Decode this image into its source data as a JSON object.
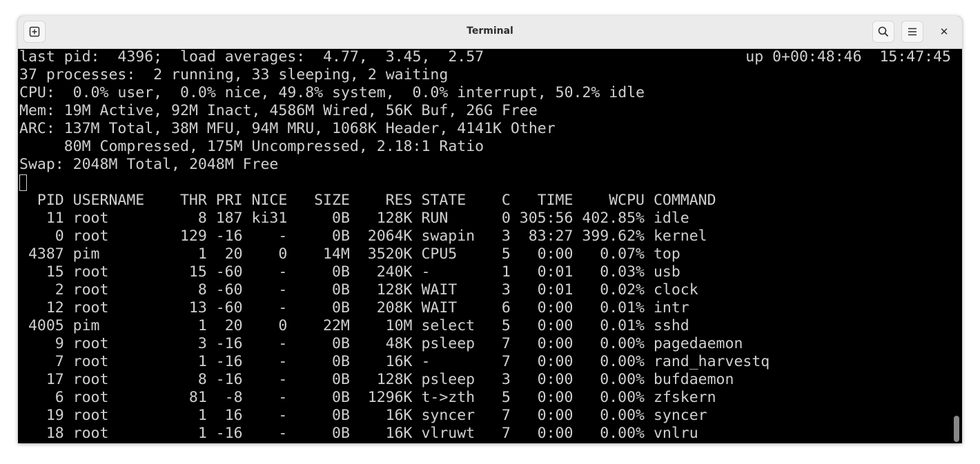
{
  "window": {
    "title": "Terminal",
    "buttons": {
      "new_tab": "new-tab-icon",
      "search": "search-icon",
      "menu": "hamburger-menu-icon",
      "close": "close-icon"
    }
  },
  "colors": {
    "background": "#000000",
    "foreground": "#d0d0d0",
    "header": "#ebebeb"
  },
  "summary": {
    "line1_left": "last pid:  4396;  load averages:  4.77,  3.45,  2.57",
    "line1_right": "up 0+00:48:46  15:47:45",
    "lines": [
      "37 processes:  2 running, 33 sleeping, 2 waiting",
      "CPU:  0.0% user,  0.0% nice, 49.8% system,  0.0% interrupt, 50.2% idle",
      "Mem: 19M Active, 92M Inact, 4586M Wired, 56K Buf, 26G Free",
      "ARC: 137M Total, 38M MFU, 94M MRU, 1068K Header, 4141K Other",
      "     80M Compressed, 175M Uncompressed, 2.18:1 Ratio",
      "Swap: 2048M Total, 2048M Free"
    ]
  },
  "table": {
    "columns": [
      "PID",
      "USERNAME",
      "THR",
      "PRI",
      "NICE",
      "SIZE",
      "RES",
      "STATE",
      "C",
      "TIME",
      "WCPU",
      "COMMAND"
    ],
    "rows": [
      [
        "11",
        "root",
        "8",
        "187",
        "ki31",
        "0B",
        "128K",
        "RUN",
        "0",
        "305:56",
        "402.85%",
        "idle"
      ],
      [
        "0",
        "root",
        "129",
        "-16",
        "-",
        "0B",
        "2064K",
        "swapin",
        "3",
        "83:27",
        "399.62%",
        "kernel"
      ],
      [
        "4387",
        "pim",
        "1",
        "20",
        "0",
        "14M",
        "3520K",
        "CPU5",
        "5",
        "0:00",
        "0.07%",
        "top"
      ],
      [
        "15",
        "root",
        "15",
        "-60",
        "-",
        "0B",
        "240K",
        "-",
        "1",
        "0:01",
        "0.03%",
        "usb"
      ],
      [
        "2",
        "root",
        "8",
        "-60",
        "-",
        "0B",
        "128K",
        "WAIT",
        "3",
        "0:01",
        "0.02%",
        "clock"
      ],
      [
        "12",
        "root",
        "13",
        "-60",
        "-",
        "0B",
        "208K",
        "WAIT",
        "6",
        "0:00",
        "0.01%",
        "intr"
      ],
      [
        "4005",
        "pim",
        "1",
        "20",
        "0",
        "22M",
        "10M",
        "select",
        "5",
        "0:00",
        "0.01%",
        "sshd"
      ],
      [
        "9",
        "root",
        "3",
        "-16",
        "-",
        "0B",
        "48K",
        "psleep",
        "7",
        "0:00",
        "0.00%",
        "pagedaemon"
      ],
      [
        "7",
        "root",
        "1",
        "-16",
        "-",
        "0B",
        "16K",
        "-",
        "7",
        "0:00",
        "0.00%",
        "rand_harvestq"
      ],
      [
        "17",
        "root",
        "8",
        "-16",
        "-",
        "0B",
        "128K",
        "psleep",
        "3",
        "0:00",
        "0.00%",
        "bufdaemon"
      ],
      [
        "6",
        "root",
        "81",
        "-8",
        "-",
        "0B",
        "1296K",
        "t->zth",
        "5",
        "0:00",
        "0.00%",
        "zfskern"
      ],
      [
        "19",
        "root",
        "1",
        "16",
        "-",
        "0B",
        "16K",
        "syncer",
        "7",
        "0:00",
        "0.00%",
        "syncer"
      ],
      [
        "18",
        "root",
        "1",
        "-16",
        "-",
        "0B",
        "16K",
        "vlruwt",
        "7",
        "0:00",
        "0.00%",
        "vnlru"
      ]
    ]
  }
}
